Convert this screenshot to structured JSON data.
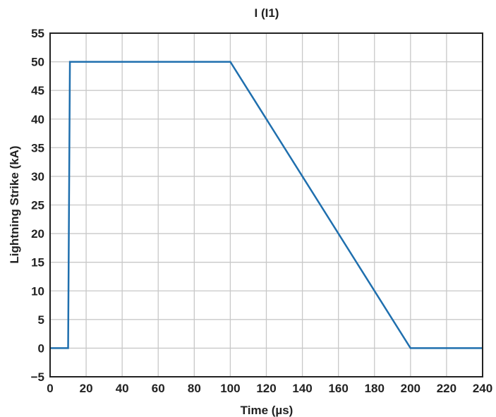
{
  "chart_data": {
    "type": "line",
    "title": "I (I1)",
    "xlabel": "Time (µs)",
    "ylabel": "Lightning Strike (kA)",
    "xlim": [
      0,
      240
    ],
    "ylim": [
      -5,
      55
    ],
    "xticks": [
      0,
      20,
      40,
      60,
      80,
      100,
      120,
      140,
      160,
      180,
      200,
      220,
      240
    ],
    "yticks": [
      -5,
      0,
      5,
      10,
      15,
      20,
      25,
      30,
      35,
      40,
      45,
      50,
      55
    ],
    "xtick_labels": [
      "0",
      "20",
      "40",
      "60",
      "80",
      "100",
      "120",
      "140",
      "160",
      "180",
      "200",
      "220",
      "240"
    ],
    "ytick_labels": [
      "−5",
      "0",
      "5",
      "10",
      "15",
      "20",
      "25",
      "30",
      "35",
      "40",
      "45",
      "50",
      "55"
    ],
    "grid": true,
    "series": [
      {
        "color": "#1f6fae",
        "x": [
          0,
          10,
          11,
          100,
          200,
          240
        ],
        "y": [
          0,
          0,
          50,
          50,
          0,
          0
        ]
      }
    ]
  }
}
